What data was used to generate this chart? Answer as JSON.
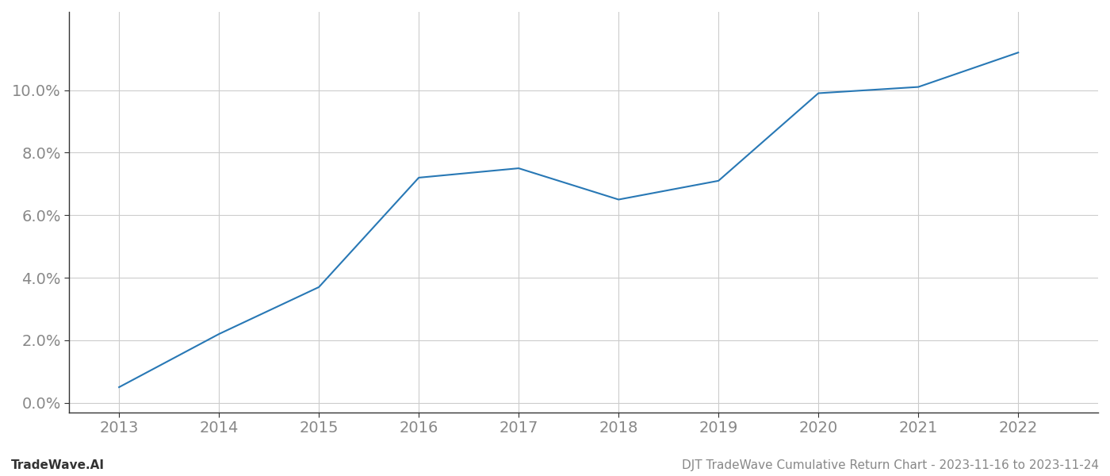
{
  "x": [
    2013,
    2014,
    2015,
    2016,
    2017,
    2018,
    2019,
    2020,
    2021,
    2022
  ],
  "y": [
    0.005,
    0.022,
    0.037,
    0.072,
    0.075,
    0.065,
    0.071,
    0.099,
    0.101,
    0.112
  ],
  "line_color": "#2878b5",
  "line_width": 1.5,
  "background_color": "#ffffff",
  "grid_color": "#cccccc",
  "yticks": [
    0.0,
    0.02,
    0.04,
    0.06,
    0.08,
    0.1
  ],
  "ytick_labels": [
    "0.0%",
    "2.0%",
    "4.0%",
    "6.0%",
    "8.0%",
    "10.0%"
  ],
  "xticks": [
    2013,
    2014,
    2015,
    2016,
    2017,
    2018,
    2019,
    2020,
    2021,
    2022
  ],
  "ylim": [
    -0.003,
    0.125
  ],
  "xlim": [
    2012.5,
    2022.8
  ],
  "footer_left": "TradeWave.AI",
  "footer_right": "DJT TradeWave Cumulative Return Chart - 2023-11-16 to 2023-11-24",
  "footer_fontsize": 11,
  "tick_fontsize": 14,
  "axis_color": "#888888",
  "spine_color": "#333333"
}
